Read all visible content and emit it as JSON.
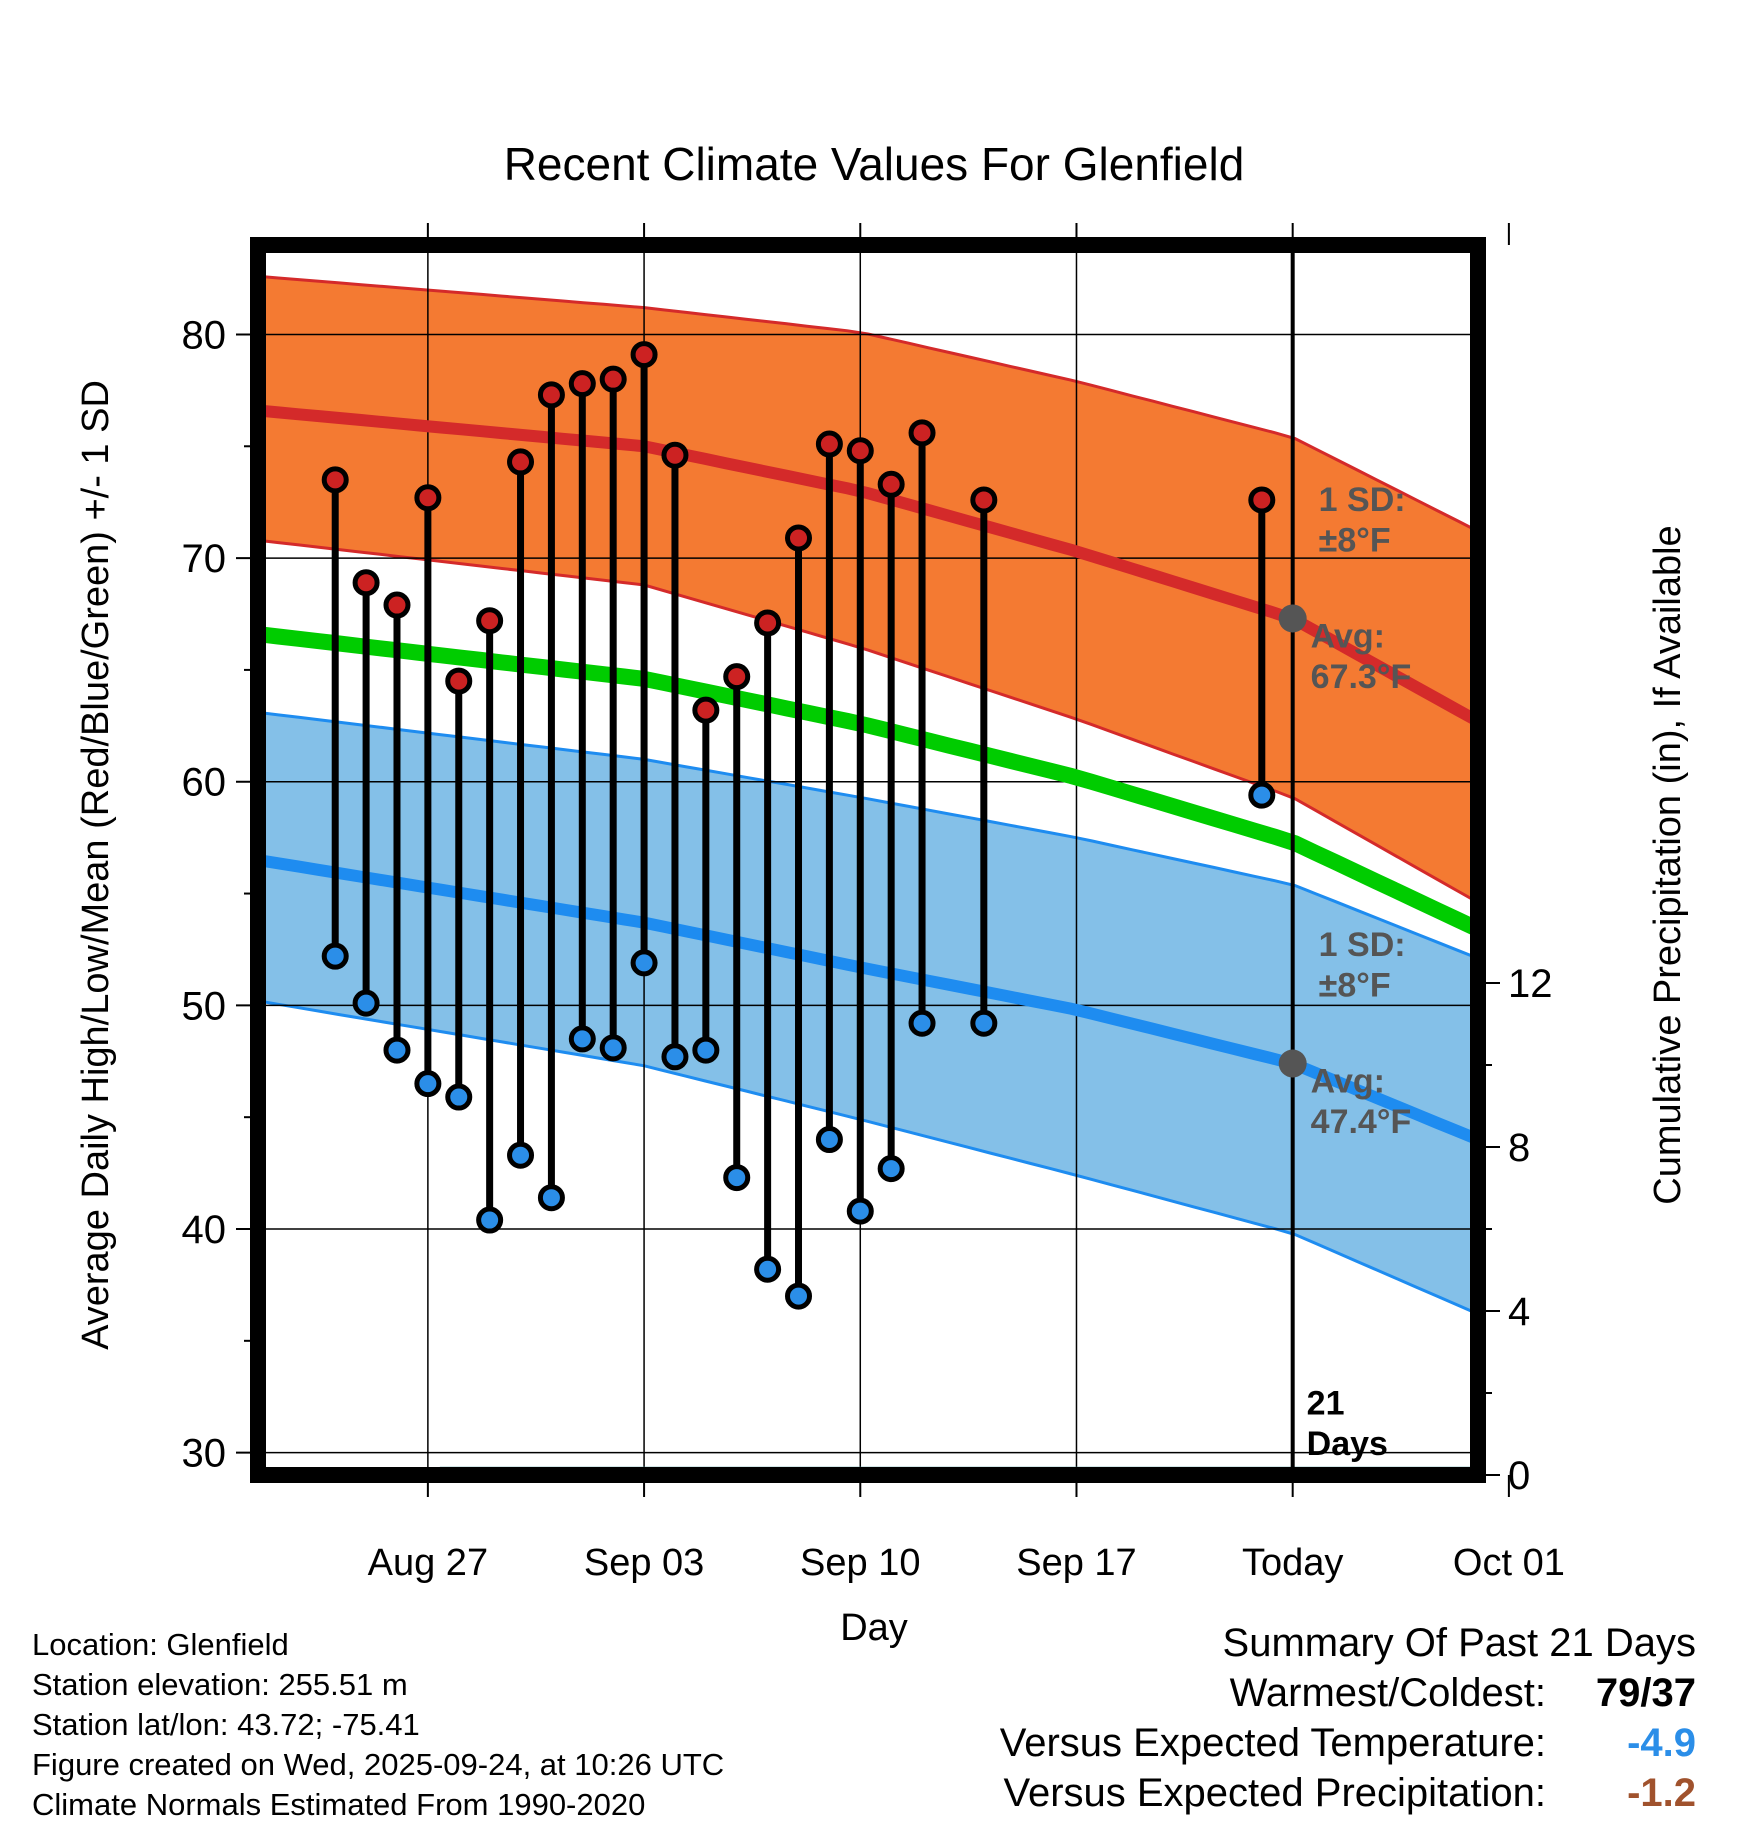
{
  "chart_data": {
    "type": "line",
    "title": "Recent Climate Values For Glenfield",
    "xlabel": "Day",
    "ylabel": "Average Daily High/Low/Mean (Red/Blue/Green) +/- 1 SD",
    "y2label": "Cumulative Precipitation (in), If Available",
    "ylim": [
      29,
      84
    ],
    "y2lim": [
      0,
      30
    ],
    "yticks": [
      30,
      40,
      50,
      60,
      70,
      80
    ],
    "y2ticks": [
      0,
      4,
      8,
      12
    ],
    "x_day_range": [
      -32.5,
      7
    ],
    "xticks": [
      {
        "day": -27,
        "label": "Aug 27"
      },
      {
        "day": -20,
        "label": "Sep 03"
      },
      {
        "day": -13,
        "label": "Sep 10"
      },
      {
        "day": -6,
        "label": "Sep 17"
      },
      {
        "day": 1,
        "label": "Today"
      },
      {
        "day": 8,
        "label": "Oct 01"
      }
    ],
    "grid": true,
    "today_day": 1,
    "normals": {
      "days": [
        -32.5,
        -20,
        -13,
        -6,
        1,
        7
      ],
      "high_mean": [
        76.6,
        75.0,
        73.0,
        70.3,
        67.3,
        62.7
      ],
      "high_upper": [
        82.6,
        81.2,
        80.1,
        77.9,
        75.4,
        71.2
      ],
      "high_lower": [
        70.8,
        68.8,
        66.0,
        62.8,
        59.3,
        54.6
      ],
      "avg_mean": [
        66.6,
        64.6,
        62.6,
        60.2,
        57.3,
        53.4
      ],
      "low_mean": [
        56.5,
        53.7,
        51.7,
        49.8,
        47.4,
        44.0
      ],
      "low_upper": [
        63.1,
        61.0,
        59.3,
        57.5,
        55.4,
        52.1
      ],
      "low_lower": [
        50.2,
        47.3,
        44.9,
        42.4,
        39.8,
        36.2
      ]
    },
    "series": [
      {
        "name": "Daily High",
        "color": "#cc2222",
        "days": [
          -30,
          -29,
          -28,
          -27,
          -26,
          -25,
          -24,
          -23,
          -22,
          -21,
          -20,
          -19,
          -18,
          -17,
          -16,
          -15,
          -14,
          -13,
          -12,
          -11,
          -9,
          0
        ],
        "values": [
          73.5,
          68.9,
          67.9,
          72.7,
          64.5,
          67.2,
          74.3,
          77.3,
          77.8,
          78.0,
          79.1,
          74.6,
          63.2,
          64.7,
          67.1,
          70.9,
          75.1,
          74.8,
          73.3,
          75.6,
          72.6,
          72.6
        ]
      },
      {
        "name": "Daily Low",
        "color": "#2b8ee8",
        "days": [
          -30,
          -29,
          -28,
          -27,
          -26,
          -25,
          -24,
          -23,
          -22,
          -21,
          -20,
          -19,
          -18,
          -17,
          -16,
          -15,
          -14,
          -13,
          -12,
          -11,
          -9,
          0
        ],
        "values": [
          52.2,
          50.1,
          48.0,
          46.5,
          45.9,
          40.4,
          43.3,
          41.4,
          48.5,
          48.1,
          51.9,
          47.7,
          48.0,
          42.3,
          38.2,
          37.0,
          44.0,
          40.8,
          42.7,
          49.2,
          49.2,
          59.4
        ]
      }
    ],
    "precip": {
      "days": [
        -32.5,
        -28.2,
        -27.3,
        -26.6,
        -19.3,
        -19.0,
        -18.3,
        -18.0,
        -17.2,
        -16.5,
        -15.5,
        -14.5,
        -13.7,
        -13.0,
        -12.0,
        -11.0,
        -10.0,
        -9.0,
        -8.0,
        -7.0,
        -6.0,
        -5.0,
        -4.0,
        -3.0,
        -2.0,
        -1.0,
        -0.4,
        -0.0,
        7
      ],
      "cumulative": [
        0,
        0,
        0,
        0.2,
        0.2,
        0.2,
        0.2,
        0.2,
        0.2,
        0.2,
        0.2,
        0.2,
        0.2,
        0.2,
        0.2,
        0.2,
        0.2,
        0.2,
        0.2,
        0.2,
        0.2,
        0.2,
        0.2,
        0.2,
        0.2,
        0.2,
        0.2,
        0.2,
        0.2
      ],
      "color": "#4a9aa0"
    },
    "annotations": {
      "high_sd": {
        "label": "1 SD:",
        "value": "±8°F"
      },
      "high_avg": {
        "label": "Avg:",
        "value": "67.3°F",
        "avg": 67.3
      },
      "low_sd": {
        "label": "1 SD:",
        "value": "±8°F"
      },
      "low_avg": {
        "label": "Avg:",
        "value": "47.4°F",
        "avg": 47.4
      },
      "days_label_1": "21",
      "days_label_2": "Days"
    },
    "colors": {
      "high_band": "#f47a32",
      "high_line": "#d42a2a",
      "low_band": "#84c0e8",
      "low_line": "#1e8cf0",
      "avg_line": "#00cc00",
      "avg_marker": "#555555",
      "annotation_text": "#555555"
    }
  },
  "footer": {
    "location": "Location: Glenfield",
    "elevation": "Station elevation: 255.51 m",
    "latlon": "Station lat/lon: 43.72; -75.41",
    "created": "Figure created on Wed, 2025-09-24, at 10:26 UTC",
    "normals": "Climate Normals Estimated From 1990-2020"
  },
  "summary": {
    "title": "Summary Of Past 21 Days",
    "warmest_label": "Warmest/Coldest:",
    "warmest_value": "79/37",
    "temp_label": "Versus Expected Temperature:",
    "temp_value": "-4.9",
    "temp_color": "#2b8ee8",
    "precip_label": "Versus Expected Precipitation:",
    "precip_value": "-1.2",
    "precip_color": "#a0522d"
  }
}
